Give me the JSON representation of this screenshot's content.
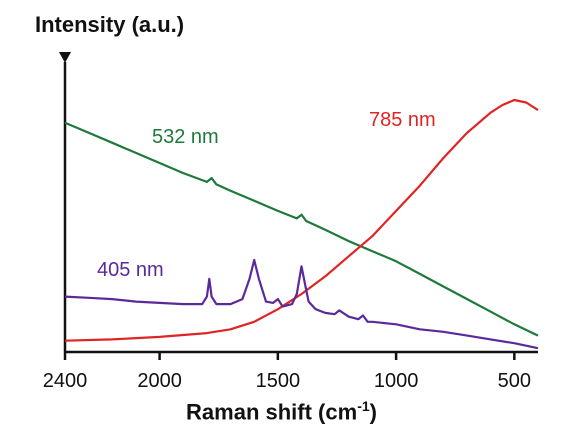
{
  "chart_data": {
    "type": "line",
    "ylabel": "Intensity (a.u.)",
    "xlabel": "Raman shift (cm",
    "xlabel_superscript": "-1",
    "xlabel_suffix": ")",
    "x_ticks": [
      "2400",
      "2000",
      "1500",
      "1000",
      "500"
    ],
    "x_tick_values": [
      2400,
      2000,
      1500,
      1000,
      500
    ],
    "xlim": [
      2400,
      400
    ],
    "ylim": [
      0,
      1
    ],
    "x_reversed": true,
    "grid": false,
    "y_ticks_shown": false,
    "series": [
      {
        "name": "532 nm",
        "color": "#1e7a3a",
        "x": [
          2400,
          2300,
          2200,
          2100,
          2000,
          1900,
          1800,
          1780,
          1760,
          1700,
          1600,
          1500,
          1420,
          1400,
          1380,
          1300,
          1200,
          1100,
          1000,
          900,
          800,
          700,
          600,
          500,
          400
        ],
        "y": [
          0.91,
          0.87,
          0.83,
          0.79,
          0.75,
          0.71,
          0.675,
          0.69,
          0.665,
          0.64,
          0.6,
          0.56,
          0.53,
          0.545,
          0.52,
          0.485,
          0.44,
          0.4,
          0.36,
          0.31,
          0.26,
          0.21,
          0.16,
          0.11,
          0.065
        ]
      },
      {
        "name": "785 nm",
        "color": "#e02424",
        "x": [
          2400,
          2200,
          2000,
          1800,
          1700,
          1600,
          1500,
          1400,
          1300,
          1200,
          1100,
          1000,
          900,
          800,
          700,
          600,
          550,
          500,
          450,
          400
        ],
        "y": [
          0.045,
          0.05,
          0.06,
          0.075,
          0.09,
          0.12,
          0.17,
          0.23,
          0.3,
          0.38,
          0.46,
          0.56,
          0.66,
          0.77,
          0.87,
          0.95,
          0.98,
          1.0,
          0.99,
          0.96
        ]
      },
      {
        "name": "405 nm",
        "color": "#5a2a9a",
        "x": [
          2400,
          2300,
          2200,
          2100,
          2000,
          1900,
          1820,
          1800,
          1790,
          1780,
          1760,
          1700,
          1650,
          1620,
          1600,
          1580,
          1550,
          1520,
          1500,
          1480,
          1440,
          1420,
          1400,
          1385,
          1370,
          1340,
          1300,
          1260,
          1240,
          1200,
          1160,
          1140,
          1120,
          1100,
          1000,
          900,
          800,
          700,
          600,
          500,
          400
        ],
        "y": [
          0.22,
          0.215,
          0.21,
          0.2,
          0.195,
          0.19,
          0.19,
          0.22,
          0.29,
          0.22,
          0.19,
          0.19,
          0.21,
          0.29,
          0.365,
          0.29,
          0.2,
          0.195,
          0.21,
          0.18,
          0.19,
          0.23,
          0.34,
          0.27,
          0.2,
          0.17,
          0.155,
          0.15,
          0.165,
          0.14,
          0.13,
          0.145,
          0.12,
          0.12,
          0.11,
          0.09,
          0.08,
          0.065,
          0.05,
          0.035,
          0.015
        ]
      }
    ]
  }
}
